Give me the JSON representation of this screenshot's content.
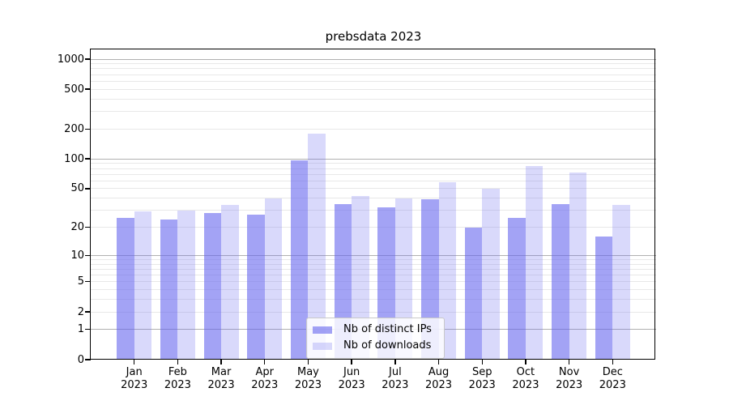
{
  "title": "prebsdata 2023",
  "colors": {
    "bar_distinct_ips": "rgba(102,102,238,0.6)",
    "bar_downloads": "rgba(102,102,238,0.25)",
    "grid_major": "#b0b0b0",
    "grid_minor": "#e8e8e8",
    "axis": "#000000",
    "legend_border": "#c9c9c9"
  },
  "legend": {
    "position": "lower center",
    "items": [
      {
        "label": "Nb of distinct IPs",
        "swatch": "dark-periwinkle"
      },
      {
        "label": "Nb of downloads",
        "swatch": "light-lavender"
      }
    ]
  },
  "chart_data": {
    "type": "bar",
    "title": "prebsdata 2023",
    "scale": "log1p",
    "grid": true,
    "categories": [
      "Jan",
      "Feb",
      "Mar",
      "Apr",
      "May",
      "Jun",
      "Jul",
      "Aug",
      "Sep",
      "Oct",
      "Nov",
      "Dec"
    ],
    "year_label": "2023",
    "series": [
      {
        "name": "Nb of distinct IPs",
        "color": "rgba(102,102,238,0.6)",
        "values": [
          25,
          24,
          28,
          27,
          96,
          35,
          32,
          39,
          20,
          25,
          35,
          16
        ]
      },
      {
        "name": "Nb of downloads",
        "color": "rgba(102,102,238,0.25)",
        "values": [
          29,
          30,
          34,
          40,
          180,
          42,
          40,
          58,
          50,
          85,
          73,
          34
        ]
      }
    ],
    "yticks": [
      0,
      1,
      2,
      5,
      10,
      20,
      50,
      100,
      200,
      500,
      1000
    ],
    "major_gridlines": [
      1,
      10,
      100,
      1000
    ],
    "minor_gridlines": [
      2,
      3,
      4,
      5,
      6,
      7,
      8,
      9,
      20,
      30,
      40,
      50,
      60,
      70,
      80,
      90,
      200,
      300,
      400,
      500,
      600,
      700,
      800,
      900
    ],
    "ylim": [
      0,
      1250
    ],
    "xlabel": "",
    "ylabel": ""
  }
}
